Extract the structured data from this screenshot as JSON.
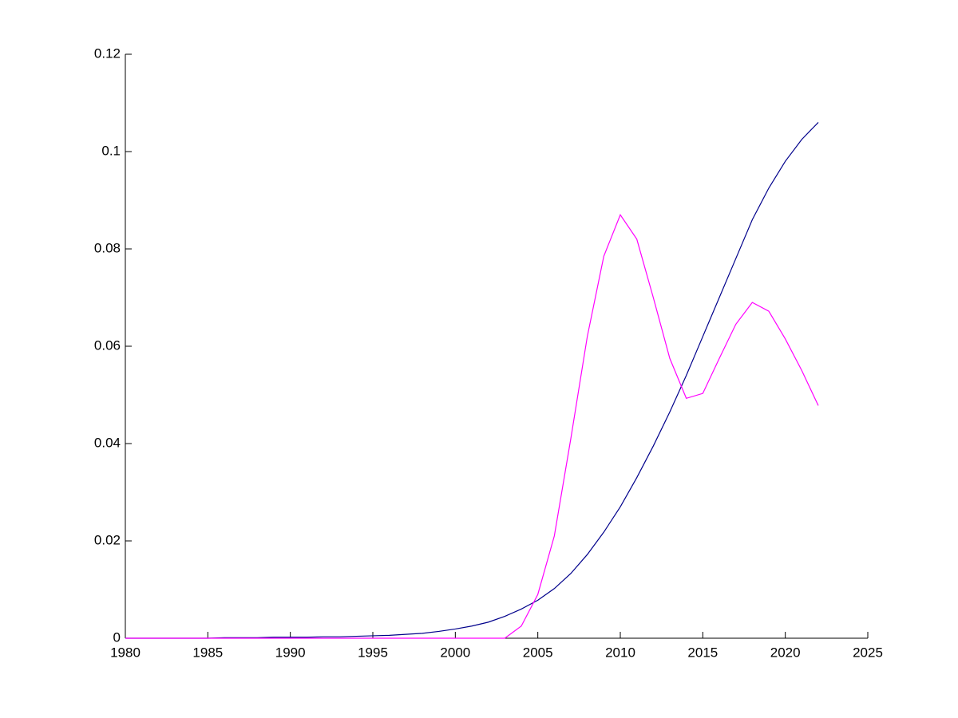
{
  "chart_data": {
    "type": "line",
    "x": [
      1980,
      1981,
      1982,
      1983,
      1984,
      1985,
      1986,
      1987,
      1988,
      1989,
      1990,
      1991,
      1992,
      1993,
      1994,
      1995,
      1996,
      1997,
      1998,
      1999,
      2000,
      2001,
      2002,
      2003,
      2004,
      2005,
      2006,
      2007,
      2008,
      2009,
      2010,
      2011,
      2012,
      2013,
      2014,
      2015,
      2016,
      2017,
      2018,
      2019,
      2020,
      2021,
      2022
    ],
    "series": [
      {
        "color": "#00008b",
        "values": [
          0,
          0,
          0,
          0,
          0,
          0,
          0.0001,
          0.0001,
          0.0001,
          0.0002,
          0.0002,
          0.0002,
          0.0003,
          0.0003,
          0.0004,
          0.0005,
          0.0006,
          0.0008,
          0.001,
          0.0014,
          0.0019,
          0.0025,
          0.0033,
          0.0045,
          0.006,
          0.0078,
          0.0102,
          0.0133,
          0.0172,
          0.0218,
          0.027,
          0.033,
          0.0395,
          0.0465,
          0.054,
          0.062,
          0.07,
          0.078,
          0.086,
          0.0925,
          0.098,
          0.1025,
          0.106
        ]
      },
      {
        "color": "#ff00ff",
        "values": [
          0,
          0,
          0,
          0,
          0,
          0,
          0,
          0,
          0,
          0,
          0,
          0,
          0,
          0,
          0,
          0,
          0,
          0,
          0,
          0,
          0,
          0,
          0,
          0,
          0.0025,
          0.009,
          0.021,
          0.041,
          0.062,
          0.0785,
          0.087,
          0.082,
          0.07,
          0.0575,
          0.0493,
          0.0503,
          0.0575,
          0.0645,
          0.069,
          0.0672,
          0.0615,
          0.055,
          0.0478
        ]
      }
    ],
    "xlim": [
      1980,
      2025
    ],
    "xticks": [
      1980,
      1985,
      1990,
      1995,
      2000,
      2005,
      2010,
      2015,
      2020,
      2025
    ],
    "ylim": [
      0,
      0.12
    ],
    "yticks": [
      0,
      0.02,
      0.04,
      0.06,
      0.08,
      0.1,
      0.12
    ]
  }
}
